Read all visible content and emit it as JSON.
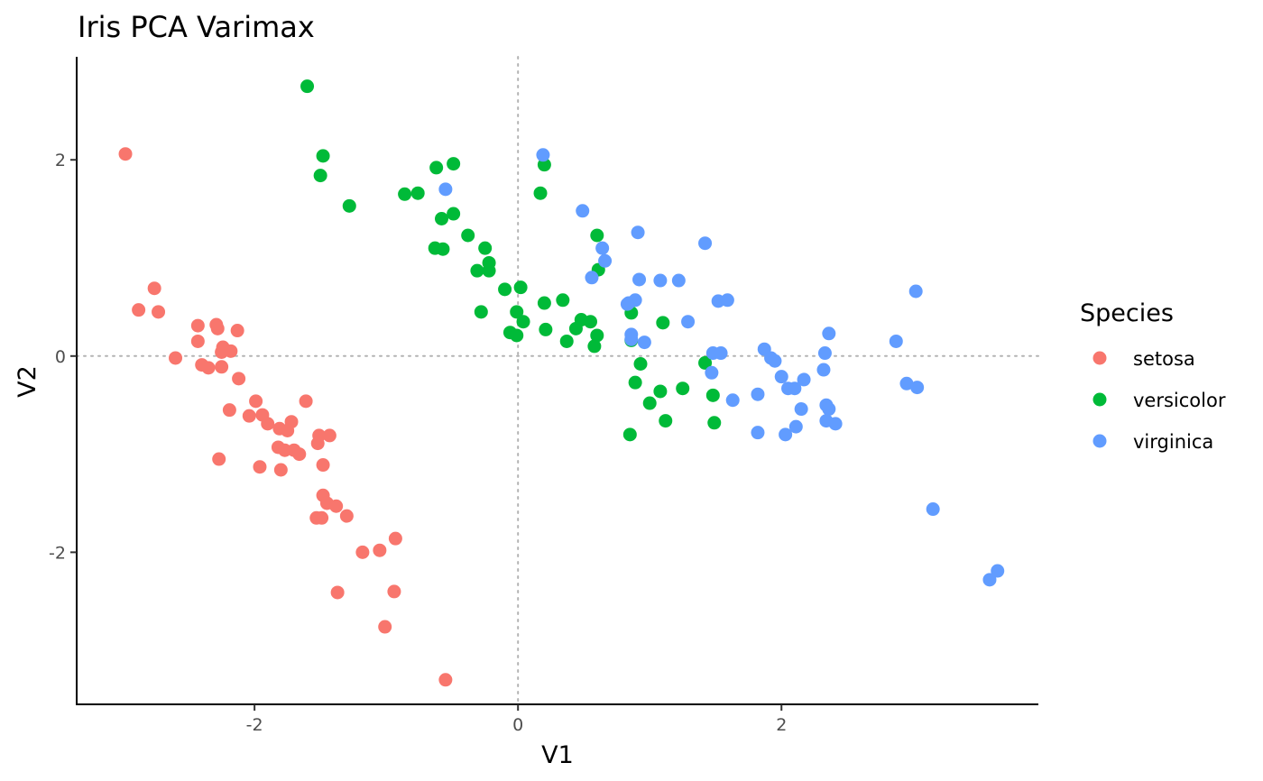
{
  "chart_data": {
    "type": "scatter",
    "title": "Iris PCA Varimax",
    "xlabel": "V1",
    "ylabel": "V2",
    "xlim": [
      -3.35,
      3.95
    ],
    "ylim": [
      -3.55,
      3.05
    ],
    "x_ticks": [
      -2,
      0,
      2
    ],
    "y_ticks": [
      -2,
      0,
      2
    ],
    "x_tick_labels": [
      "-2",
      "0",
      "2"
    ],
    "y_tick_labels": [
      "-2",
      "0",
      "2"
    ],
    "reference_lines": {
      "x": 0,
      "y": 0
    },
    "grid": false,
    "legend": {
      "title": "Species",
      "position": "right"
    },
    "series": [
      {
        "name": "setosa",
        "color": "#F8766D",
        "points": [
          [
            -2.98,
            2.06
          ],
          [
            -2.88,
            0.47
          ],
          [
            -2.76,
            0.69
          ],
          [
            -2.73,
            0.45
          ],
          [
            -2.6,
            -0.02
          ],
          [
            -2.43,
            0.31
          ],
          [
            -2.43,
            0.15
          ],
          [
            -2.4,
            -0.09
          ],
          [
            -2.35,
            -0.12
          ],
          [
            -2.29,
            0.32
          ],
          [
            -2.28,
            0.28
          ],
          [
            -2.27,
            -1.05
          ],
          [
            -2.25,
            0.04
          ],
          [
            -2.25,
            -0.11
          ],
          [
            -2.24,
            0.09
          ],
          [
            -2.19,
            -0.55
          ],
          [
            -2.18,
            0.05
          ],
          [
            -2.13,
            0.26
          ],
          [
            -2.12,
            -0.23
          ],
          [
            -2.04,
            -0.61
          ],
          [
            -1.99,
            -0.46
          ],
          [
            -1.96,
            -1.13
          ],
          [
            -1.94,
            -0.6
          ],
          [
            -1.9,
            -0.69
          ],
          [
            -1.82,
            -0.93
          ],
          [
            -1.81,
            -0.74
          ],
          [
            -1.8,
            -1.16
          ],
          [
            -1.77,
            -0.96
          ],
          [
            -1.75,
            -0.76
          ],
          [
            -1.72,
            -0.67
          ],
          [
            -1.7,
            -0.96
          ],
          [
            -1.66,
            -1.0
          ],
          [
            -1.61,
            -0.46
          ],
          [
            -1.53,
            -1.65
          ],
          [
            -1.52,
            -0.89
          ],
          [
            -1.51,
            -0.81
          ],
          [
            -1.49,
            -1.65
          ],
          [
            -1.48,
            -1.42
          ],
          [
            -1.48,
            -1.11
          ],
          [
            -1.45,
            -1.5
          ],
          [
            -1.43,
            -0.81
          ],
          [
            -1.38,
            -1.53
          ],
          [
            -1.37,
            -2.41
          ],
          [
            -1.3,
            -1.63
          ],
          [
            -1.18,
            -2.0
          ],
          [
            -1.05,
            -1.98
          ],
          [
            -1.01,
            -2.76
          ],
          [
            -0.94,
            -2.4
          ],
          [
            -0.93,
            -1.86
          ],
          [
            -0.55,
            -3.3
          ]
        ]
      },
      {
        "name": "versicolor",
        "color": "#00BA38",
        "points": [
          [
            -1.6,
            2.75
          ],
          [
            -1.48,
            2.04
          ],
          [
            -1.5,
            1.84
          ],
          [
            -1.28,
            1.53
          ],
          [
            -0.86,
            1.65
          ],
          [
            -0.76,
            1.66
          ],
          [
            -0.62,
            1.92
          ],
          [
            -0.49,
            1.96
          ],
          [
            -0.58,
            1.4
          ],
          [
            -0.49,
            1.45
          ],
          [
            -0.63,
            1.1
          ],
          [
            -0.57,
            1.09
          ],
          [
            -0.38,
            1.23
          ],
          [
            -0.25,
            1.1
          ],
          [
            -0.31,
            0.87
          ],
          [
            -0.22,
            0.95
          ],
          [
            -0.22,
            0.87
          ],
          [
            -0.28,
            0.45
          ],
          [
            -0.1,
            0.68
          ],
          [
            0.02,
            0.7
          ],
          [
            -0.01,
            0.45
          ],
          [
            0.04,
            0.35
          ],
          [
            -0.06,
            0.24
          ],
          [
            -0.01,
            0.21
          ],
          [
            0.17,
            1.66
          ],
          [
            0.2,
            1.95
          ],
          [
            0.2,
            0.54
          ],
          [
            0.21,
            0.27
          ],
          [
            0.34,
            0.57
          ],
          [
            0.37,
            0.15
          ],
          [
            0.44,
            0.28
          ],
          [
            0.48,
            0.37
          ],
          [
            0.55,
            0.35
          ],
          [
            0.58,
            0.1
          ],
          [
            0.6,
            0.21
          ],
          [
            0.6,
            1.23
          ],
          [
            0.61,
            0.88
          ],
          [
            0.86,
            0.44
          ],
          [
            0.86,
            0.16
          ],
          [
            0.89,
            -0.27
          ],
          [
            0.85,
            -0.8
          ],
          [
            0.93,
            -0.08
          ],
          [
            1.0,
            -0.48
          ],
          [
            1.08,
            -0.36
          ],
          [
            1.1,
            0.34
          ],
          [
            1.12,
            -0.66
          ],
          [
            1.25,
            -0.33
          ],
          [
            1.42,
            -0.07
          ],
          [
            1.48,
            -0.4
          ],
          [
            1.49,
            -0.68
          ]
        ]
      },
      {
        "name": "virginica",
        "color": "#619CFF",
        "points": [
          [
            0.19,
            2.05
          ],
          [
            -0.55,
            1.7
          ],
          [
            0.49,
            1.48
          ],
          [
            0.64,
            1.1
          ],
          [
            0.66,
            0.97
          ],
          [
            0.56,
            0.8
          ],
          [
            0.91,
            1.26
          ],
          [
            0.92,
            0.78
          ],
          [
            0.84,
            0.54
          ],
          [
            0.89,
            0.57
          ],
          [
            0.86,
            0.22
          ],
          [
            0.86,
            0.17
          ],
          [
            0.96,
            0.14
          ],
          [
            1.08,
            0.77
          ],
          [
            1.22,
            0.77
          ],
          [
            1.29,
            0.35
          ],
          [
            1.42,
            1.15
          ],
          [
            1.52,
            0.56
          ],
          [
            1.59,
            0.57
          ],
          [
            1.48,
            0.03
          ],
          [
            1.54,
            0.03
          ],
          [
            1.47,
            -0.17
          ],
          [
            1.63,
            -0.45
          ],
          [
            1.82,
            -0.39
          ],
          [
            1.82,
            -0.78
          ],
          [
            1.87,
            0.07
          ],
          [
            1.92,
            -0.02
          ],
          [
            1.95,
            -0.05
          ],
          [
            2.0,
            -0.21
          ],
          [
            2.05,
            -0.33
          ],
          [
            2.1,
            -0.33
          ],
          [
            2.15,
            -0.54
          ],
          [
            2.17,
            -0.24
          ],
          [
            2.03,
            -0.8
          ],
          [
            2.11,
            -0.72
          ],
          [
            2.33,
            0.03
          ],
          [
            2.36,
            0.23
          ],
          [
            2.32,
            -0.14
          ],
          [
            2.34,
            -0.5
          ],
          [
            2.36,
            -0.54
          ],
          [
            2.34,
            -0.66
          ],
          [
            2.41,
            -0.69
          ],
          [
            2.87,
            0.15
          ],
          [
            2.95,
            -0.28
          ],
          [
            3.02,
            0.66
          ],
          [
            3.03,
            -0.32
          ],
          [
            3.15,
            -1.56
          ],
          [
            3.58,
            -2.28
          ],
          [
            3.64,
            -2.19
          ],
          [
            0.83,
            0.53
          ]
        ]
      }
    ]
  }
}
